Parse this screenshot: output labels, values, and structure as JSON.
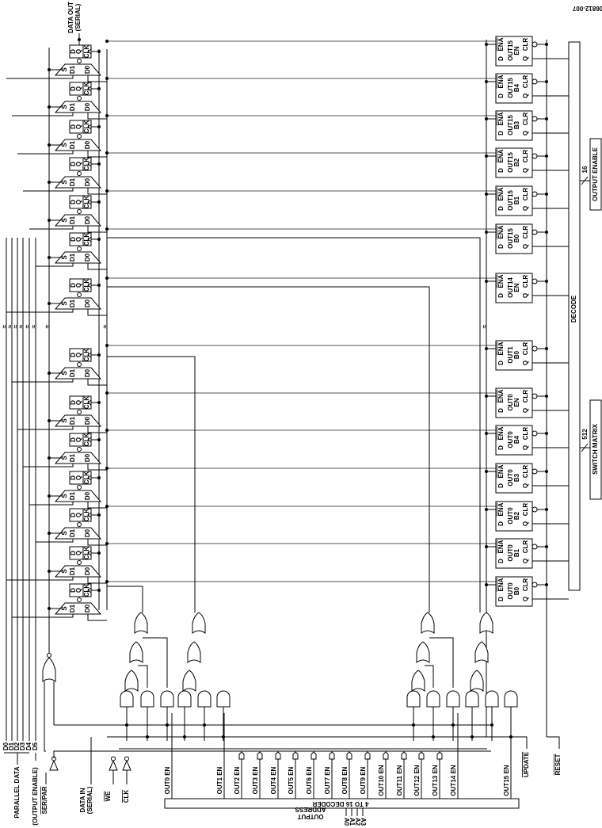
{
  "figure_id": "06812-007",
  "top": {
    "data_out": "DATA OUT",
    "data_out_sub": "(SERIAL)"
  },
  "shift_stage": {
    "d": "D",
    "q": "Q",
    "clk": "CLK",
    "s": "S",
    "d1": "D1",
    "d0": "D0",
    "mux_q": "Q"
  },
  "registers": [
    {
      "out": "OUT15",
      "bit": "EN"
    },
    {
      "out": "OUT15",
      "bit": "B4"
    },
    {
      "out": "OUT15",
      "bit": "B3"
    },
    {
      "out": "OUT15",
      "bit": "B2"
    },
    {
      "out": "OUT15",
      "bit": "B1"
    },
    {
      "out": "OUT15",
      "bit": "B0"
    },
    {
      "out": "OUT14",
      "bit": "EN"
    },
    {
      "out": "OUT1",
      "bit": "B0"
    },
    {
      "out": "OUT0",
      "bit": "EN"
    },
    {
      "out": "OUT0",
      "bit": "B4"
    },
    {
      "out": "OUT0",
      "bit": "B3"
    },
    {
      "out": "OUT0",
      "bit": "B2"
    },
    {
      "out": "OUT0",
      "bit": "B1"
    },
    {
      "out": "OUT0",
      "bit": "B0"
    }
  ],
  "register_pins": {
    "ena": "ENA",
    "d": "D",
    "clr": "CLR",
    "q": "Q"
  },
  "bus": {
    "decode": "DECODE",
    "output_enable_width": "16",
    "output_enable": "OUTPUT ENABLE",
    "switch_width": "512",
    "switch_matrix": "SWITCH MATRIX"
  },
  "inputs": {
    "d": [
      "D0",
      "D1",
      "D2",
      "D3",
      "D4"
    ],
    "d5": "D5",
    "parallel_data": "PARALLEL DATA",
    "output_enable": "(OUTPUT ENABLE)",
    "ser_par": "SER/PAR",
    "data_in": "DATA IN",
    "data_in_sub": "(SERIAL)",
    "we": "WE",
    "clk": "CLK",
    "update": "UPDATE",
    "reset": "RESET"
  },
  "decoder": {
    "label": "4 TO 16 DECODER",
    "outputs": [
      "OUT0 EN",
      "OUT1 EN",
      "OUT2 EN",
      "OUT3 EN",
      "OUT4 EN",
      "OUT5 EN",
      "OUT6 EN",
      "OUT7 EN",
      "OUT8 EN",
      "OUT9 EN",
      "OUT10 EN",
      "OUT11 EN",
      "OUT12 EN",
      "OUT13 EN",
      "OUT14 EN",
      "OUT15 EN"
    ],
    "address_label_1": "OUTPUT",
    "address_label_2": "ADDRESS",
    "address": [
      "A0",
      "A1",
      "A2",
      "A3"
    ]
  }
}
